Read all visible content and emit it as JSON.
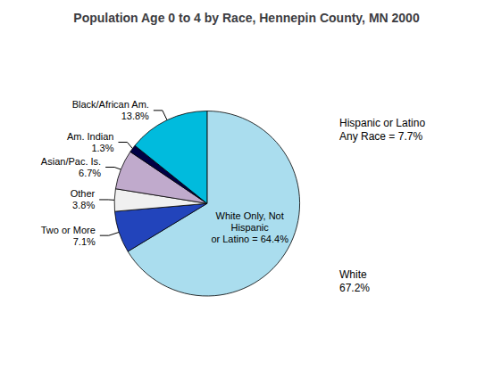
{
  "chart_data": {
    "type": "pie",
    "title": "Population Age 0 to 4 by Race, Hennepin County, MN 2000",
    "categories": [
      "White Only, Not\nHispanic\nor Latino = 64.4%",
      "Two or More\n7.1%",
      "Other\n3.8%",
      "Asian/Pac. Is.\n6.7%",
      "Am. Indian\n1.3%",
      "Black/African Am.\n13.8%"
    ],
    "values": [
      64.4,
      7.1,
      3.8,
      6.7,
      1.3,
      13.8
    ],
    "colors": [
      "#AADDEE",
      "#2244BB",
      "#F0F0F0",
      "#C0AACC",
      "#000044",
      "#00BBDD"
    ],
    "annotations": [
      "White\n67.2%",
      "Hispanic or Latino\nAny Race = 7.7%"
    ]
  }
}
